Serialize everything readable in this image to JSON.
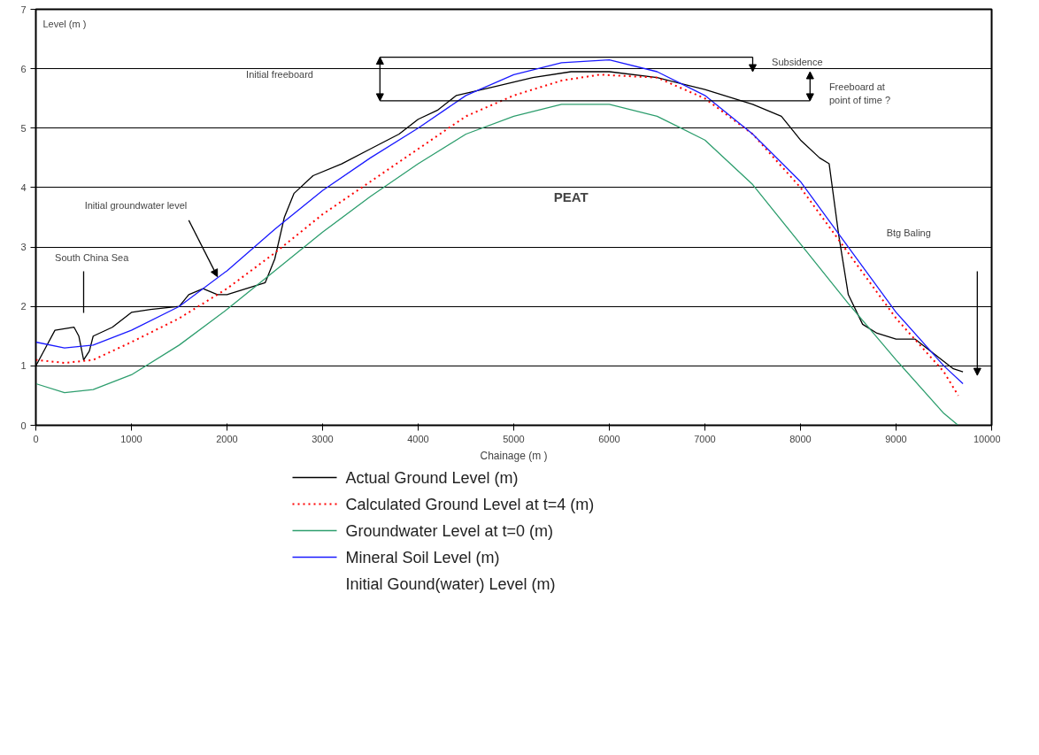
{
  "chart_data": {
    "type": "line",
    "xlabel": "Chainage (m )",
    "ylabel": "Level (m )",
    "xlim": [
      0,
      10000
    ],
    "ylim": [
      0,
      7
    ],
    "xticks": [
      0,
      1000,
      2000,
      3000,
      4000,
      5000,
      6000,
      7000,
      8000,
      9000,
      10000
    ],
    "yticks": [
      0,
      1,
      2,
      3,
      4,
      5,
      6,
      7
    ],
    "grid": "y",
    "legend": "bottom",
    "series": [
      {
        "name": "Actual Ground Level (m)",
        "color": "#000000",
        "line_style": "solid",
        "x": [
          0,
          100,
          200,
          400,
          450,
          500,
          560,
          600,
          800,
          1000,
          1200,
          1500,
          1600,
          1750,
          1900,
          2000,
          2200,
          2400,
          2500,
          2600,
          2700,
          2900,
          3200,
          3500,
          3800,
          4000,
          4200,
          4400,
          4800,
          5200,
          5600,
          6000,
          6500,
          7000,
          7500,
          7800,
          8000,
          8200,
          8300,
          8400,
          8500,
          8650,
          8800,
          9000,
          9200,
          9400,
          9600,
          9700
        ],
        "values": [
          1.0,
          1.3,
          1.6,
          1.65,
          1.5,
          1.1,
          1.25,
          1.5,
          1.65,
          1.9,
          1.95,
          2.0,
          2.2,
          2.3,
          2.2,
          2.2,
          2.3,
          2.4,
          2.8,
          3.5,
          3.9,
          4.2,
          4.4,
          4.65,
          4.9,
          5.15,
          5.3,
          5.55,
          5.7,
          5.85,
          5.95,
          5.95,
          5.85,
          5.65,
          5.4,
          5.2,
          4.8,
          4.5,
          4.4,
          3.2,
          2.2,
          1.7,
          1.55,
          1.45,
          1.45,
          1.2,
          0.95,
          0.9
        ]
      },
      {
        "name": "Calculated Ground Level at t=4 (m)",
        "color": "#ff0000",
        "line_style": "dotted",
        "x": [
          0,
          300,
          600,
          1000,
          1500,
          2000,
          2500,
          3000,
          3500,
          4000,
          4500,
          5000,
          5500,
          5900,
          6500,
          7000,
          7500,
          8000,
          8500,
          9000,
          9500,
          9650
        ],
        "values": [
          1.1,
          1.05,
          1.1,
          1.4,
          1.8,
          2.3,
          2.9,
          3.55,
          4.1,
          4.65,
          5.2,
          5.55,
          5.8,
          5.9,
          5.85,
          5.5,
          4.9,
          4.0,
          2.9,
          1.8,
          0.9,
          0.5
        ]
      },
      {
        "name": "Groundwater Level at t=0 (m)",
        "color": "#2e9e6e",
        "line_style": "solid",
        "x": [
          0,
          300,
          600,
          1000,
          1500,
          2000,
          2500,
          3000,
          3500,
          4000,
          4500,
          5000,
          5500,
          6000,
          6500,
          7000,
          7500,
          8000,
          8500,
          9000,
          9500,
          9650
        ],
        "values": [
          0.7,
          0.55,
          0.6,
          0.85,
          1.35,
          1.95,
          2.6,
          3.25,
          3.85,
          4.4,
          4.9,
          5.2,
          5.4,
          5.4,
          5.2,
          4.8,
          4.05,
          3.05,
          2.05,
          1.1,
          0.2,
          0.0
        ]
      },
      {
        "name": "Mineral Soil Level (m)",
        "color": "#1a1aff",
        "line_style": "solid",
        "x": [
          0,
          300,
          600,
          1000,
          1500,
          2000,
          2500,
          3000,
          3500,
          4000,
          4500,
          5000,
          5500,
          6000,
          6500,
          7000,
          7500,
          8000,
          8500,
          9000,
          9500,
          9700
        ],
        "values": [
          1.4,
          1.3,
          1.35,
          1.6,
          2.0,
          2.6,
          3.3,
          3.95,
          4.5,
          5.0,
          5.55,
          5.9,
          6.1,
          6.15,
          5.95,
          5.55,
          4.9,
          4.1,
          3.0,
          1.9,
          1.0,
          0.7
        ]
      }
    ],
    "annotations": [
      {
        "text": "Initial groundwater level",
        "x": 1900,
        "y": 2.5
      },
      "South China Sea",
      "Initial freeboard",
      "Subsidence",
      "Freeboard at\npoint of time ?",
      "PEAT",
      "Btg Baling",
      "Initial Gound(water) Level (m)"
    ]
  }
}
